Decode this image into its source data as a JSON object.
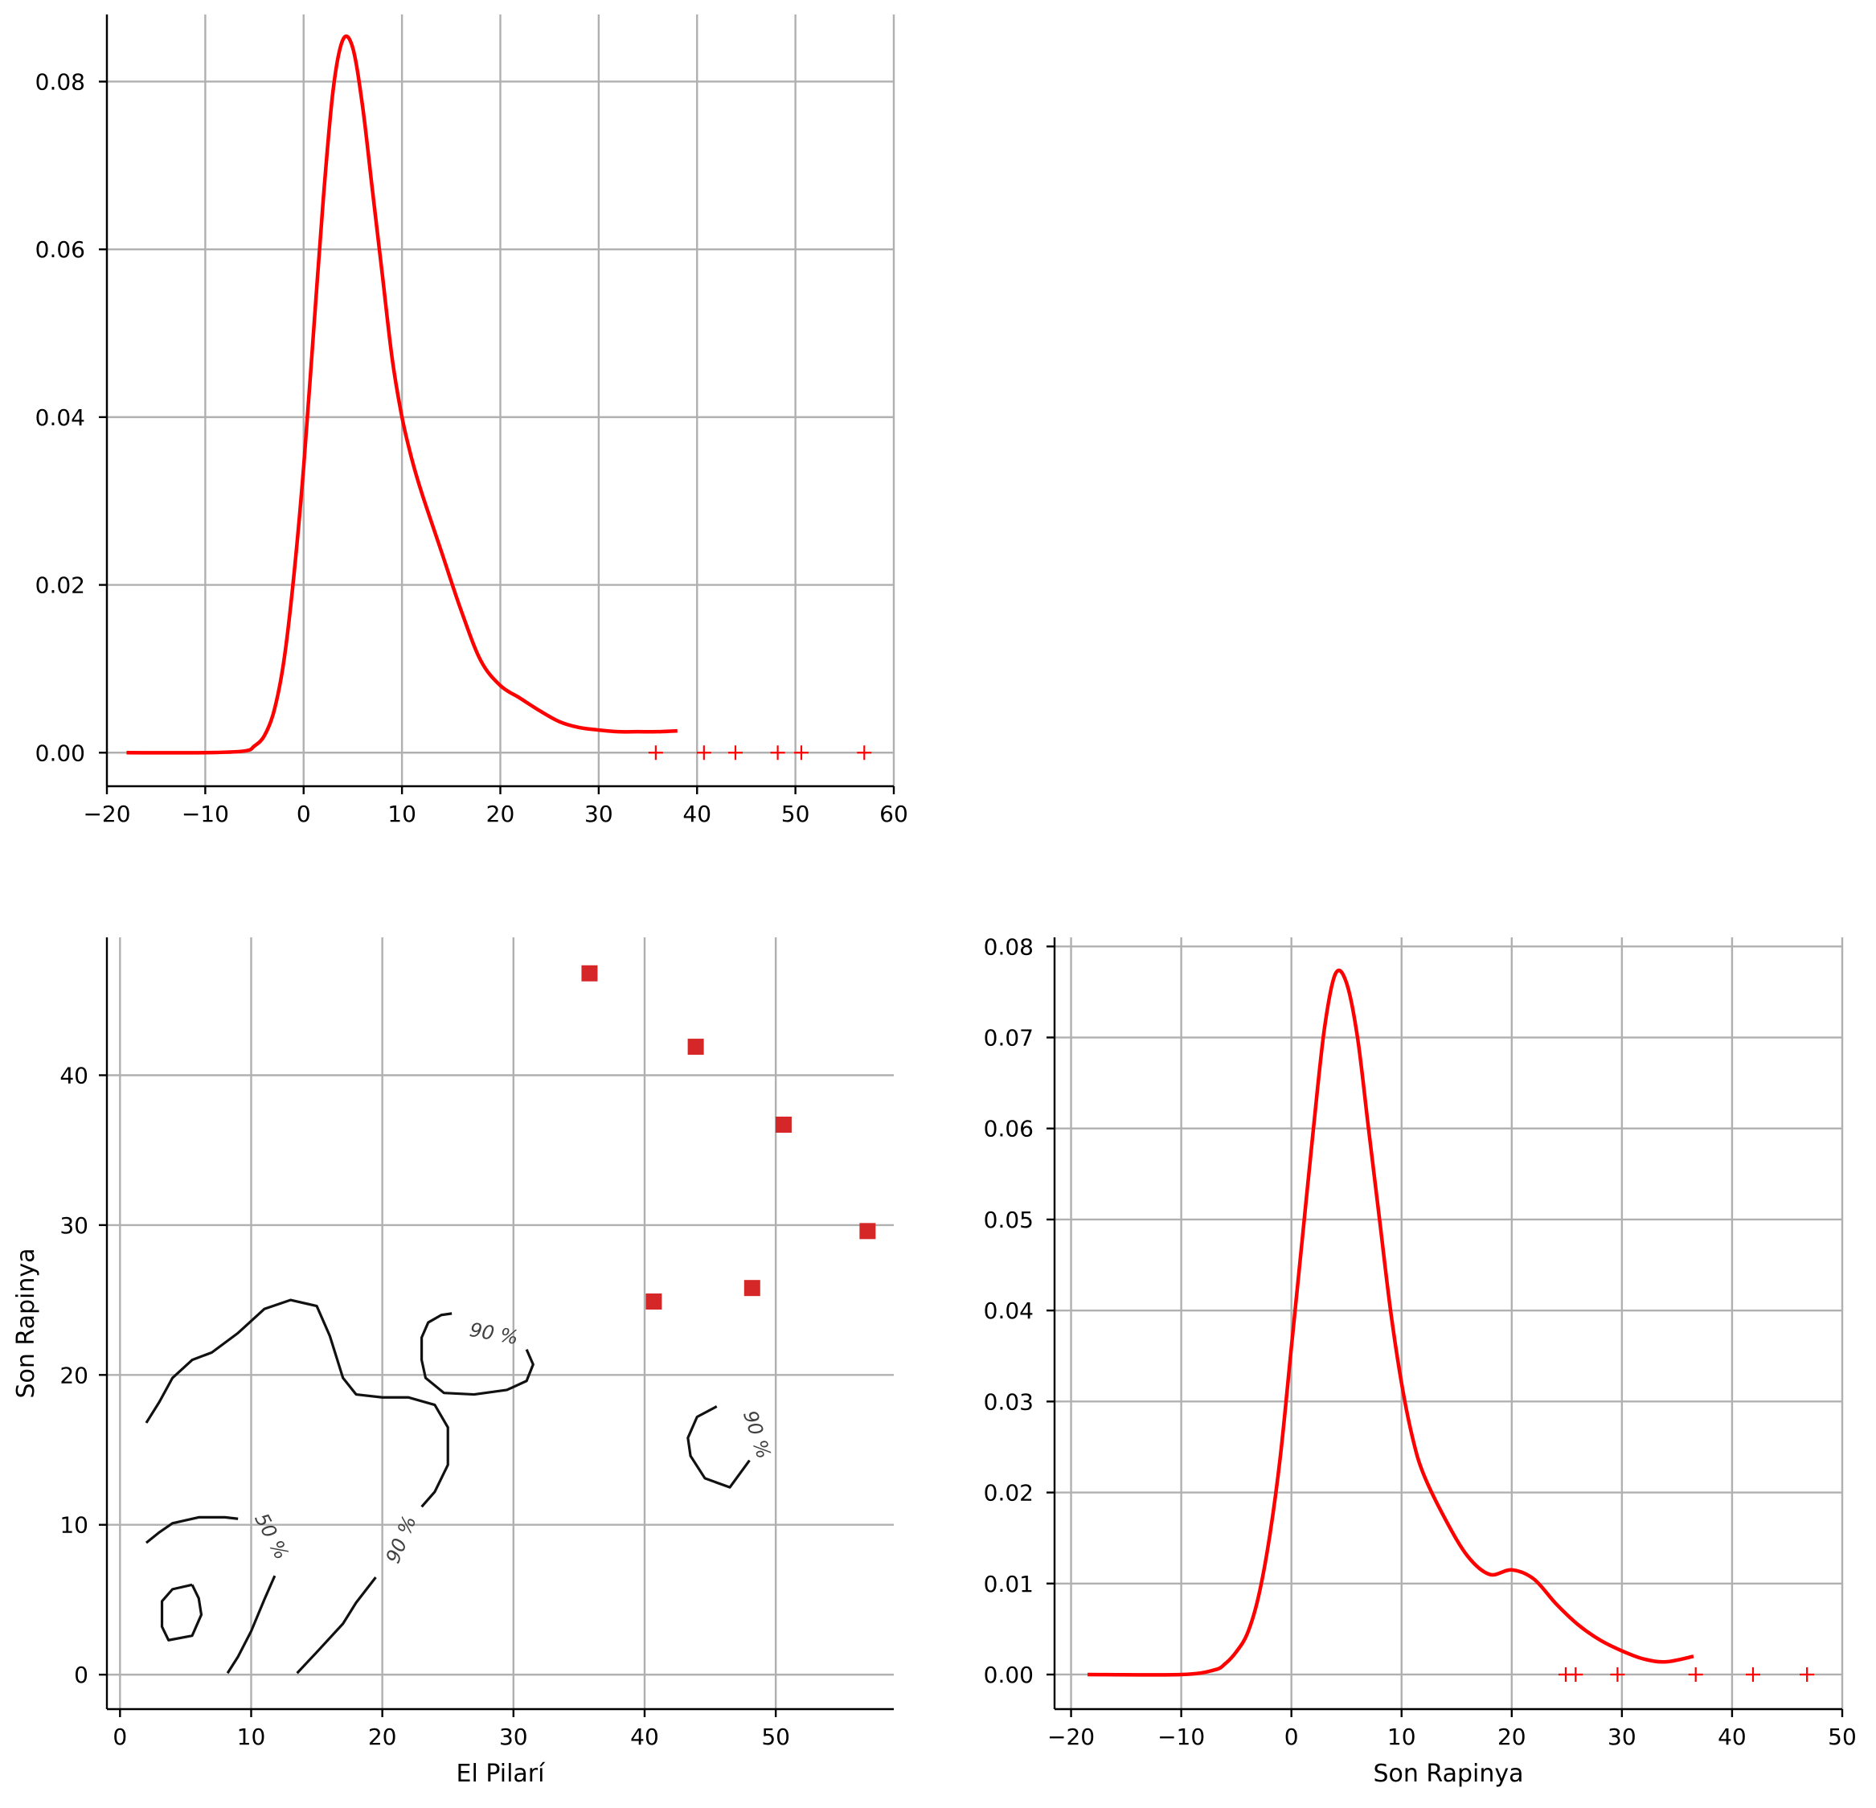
{
  "chart_data": [
    {
      "id": "kde-el-pilari",
      "type": "line",
      "title": "",
      "xlabel": "",
      "ylabel": "",
      "xlim": [
        -20,
        60
      ],
      "ylim": [
        -0.004,
        0.088
      ],
      "xticks": [
        -20,
        -10,
        0,
        10,
        20,
        30,
        40,
        50,
        60
      ],
      "yticks": [
        0.0,
        0.02,
        0.04,
        0.06,
        0.08
      ],
      "grid": true,
      "series": [
        {
          "color": "#ff0000",
          "x": [
            -18,
            -10,
            -6,
            -5,
            -4,
            -3,
            -2,
            -1,
            0,
            1,
            2,
            3,
            4,
            5,
            6,
            7,
            8,
            9,
            10,
            11,
            12,
            14,
            16,
            18,
            20,
            22,
            24,
            26,
            28,
            30,
            32,
            34,
            36,
            38
          ],
          "y": [
            0.0,
            0.0,
            0.0002,
            0.0008,
            0.002,
            0.005,
            0.011,
            0.021,
            0.034,
            0.05,
            0.066,
            0.079,
            0.085,
            0.084,
            0.077,
            0.067,
            0.057,
            0.047,
            0.04,
            0.035,
            0.031,
            0.024,
            0.017,
            0.011,
            0.008,
            0.0065,
            0.005,
            0.0037,
            0.003,
            0.0027,
            0.0025,
            0.0025,
            0.0025,
            0.0026
          ]
        }
      ],
      "rug": {
        "marker": "+",
        "color": "#ff0000",
        "x": [
          35.8,
          40.7,
          43.9,
          48.2,
          50.6,
          57.0
        ]
      }
    },
    {
      "id": "contour-pilari-vs-rapinya",
      "type": "scatter",
      "title": "",
      "xlabel": "El Pilarí",
      "ylabel": "Son Rapinya",
      "xlim": [
        -1,
        59
      ],
      "ylim": [
        -2.3,
        49.2
      ],
      "xticks": [
        0,
        10,
        20,
        30,
        40,
        50
      ],
      "yticks": [
        0,
        10,
        20,
        30,
        40
      ],
      "grid": true,
      "points": {
        "marker": "square",
        "color": "#d62728",
        "x": [
          35.8,
          43.9,
          50.6,
          57.0,
          40.7,
          48.2
        ],
        "y": [
          46.8,
          41.9,
          36.7,
          29.6,
          24.9,
          25.8
        ]
      },
      "contours": [
        {
          "level": "90 %",
          "x": [
            2,
            3,
            4,
            5.5,
            7,
            9,
            11,
            13,
            15,
            16,
            17,
            18,
            20,
            22,
            24,
            25,
            25,
            24,
            23
          ],
          "y": [
            16.8,
            18.2,
            19.8,
            21,
            21.5,
            22.8,
            24.4,
            25,
            24.6,
            22.6,
            19.8,
            18.7,
            18.5,
            18.5,
            18,
            16.5,
            14,
            12.2,
            11.2
          ]
        },
        {
          "level": "90 %",
          "x": [
            25.3,
            24.5,
            23.5,
            23,
            23,
            23.3,
            24.7,
            27,
            29.5,
            31,
            31.5,
            31
          ],
          "y": [
            24.1,
            24,
            23.5,
            22.5,
            21,
            19.8,
            18.8,
            18.7,
            19,
            19.6,
            20.7,
            21.7
          ]
        },
        {
          "level": "90 %",
          "x": [
            45.5,
            44,
            43.3,
            43.5,
            44.6,
            46.5,
            48
          ],
          "y": [
            17.9,
            17.2,
            15.8,
            14.6,
            13.1,
            12.5,
            14.3
          ]
        },
        {
          "level": "90 %",
          "x": [
            13.5,
            15,
            17,
            18,
            19.5
          ],
          "y": [
            0.1,
            1.5,
            3.4,
            4.8,
            6.5
          ]
        },
        {
          "level": "50 %",
          "x": [
            2,
            3,
            4,
            6,
            8,
            9
          ],
          "y": [
            8.8,
            9.5,
            10.1,
            10.5,
            10.5,
            10.4
          ]
        },
        {
          "level": "50 %",
          "x": [
            8.2,
            9,
            10,
            11,
            11.8
          ],
          "y": [
            0.1,
            1.2,
            2.9,
            5,
            6.6
          ]
        },
        {
          "level": "",
          "x": [
            5.5,
            4,
            3.2,
            3.2,
            3.7,
            5.5,
            6.2,
            6,
            5.5
          ],
          "y": [
            6,
            5.7,
            4.9,
            3.2,
            2.3,
            2.6,
            4,
            5.1,
            6
          ]
        }
      ]
    },
    {
      "id": "kde-son-rapinya",
      "type": "line",
      "title": "",
      "xlabel": "Son Rapinya",
      "ylabel": "",
      "xlim": [
        -21.5,
        50
      ],
      "ylim": [
        -0.0038,
        0.081
      ],
      "xticks": [
        -20,
        -10,
        0,
        10,
        20,
        30,
        40,
        50
      ],
      "yticks": [
        0.0,
        0.01,
        0.02,
        0.03,
        0.04,
        0.05,
        0.06,
        0.07,
        0.08
      ],
      "grid": true,
      "series": [
        {
          "color": "#ff0000",
          "x": [
            -18.5,
            -10,
            -7,
            -6,
            -5,
            -4,
            -3,
            -2,
            -1,
            0,
            1,
            2,
            3,
            4,
            5,
            6,
            7,
            8,
            9,
            10,
            11,
            12,
            14,
            16,
            18,
            20,
            22,
            24,
            26,
            28,
            30,
            32,
            34,
            36.5
          ],
          "y": [
            0.0,
            0.0,
            0.0005,
            0.0012,
            0.0025,
            0.0045,
            0.0085,
            0.015,
            0.024,
            0.036,
            0.048,
            0.06,
            0.071,
            0.077,
            0.076,
            0.07,
            0.06,
            0.05,
            0.04,
            0.032,
            0.026,
            0.022,
            0.017,
            0.013,
            0.011,
            0.0115,
            0.0105,
            0.0078,
            0.0055,
            0.0038,
            0.0026,
            0.0017,
            0.0014,
            0.002
          ]
        }
      ],
      "rug": {
        "marker": "+",
        "color": "#ff0000",
        "x": [
          24.9,
          25.8,
          29.6,
          36.7,
          41.9,
          46.8
        ]
      }
    }
  ]
}
